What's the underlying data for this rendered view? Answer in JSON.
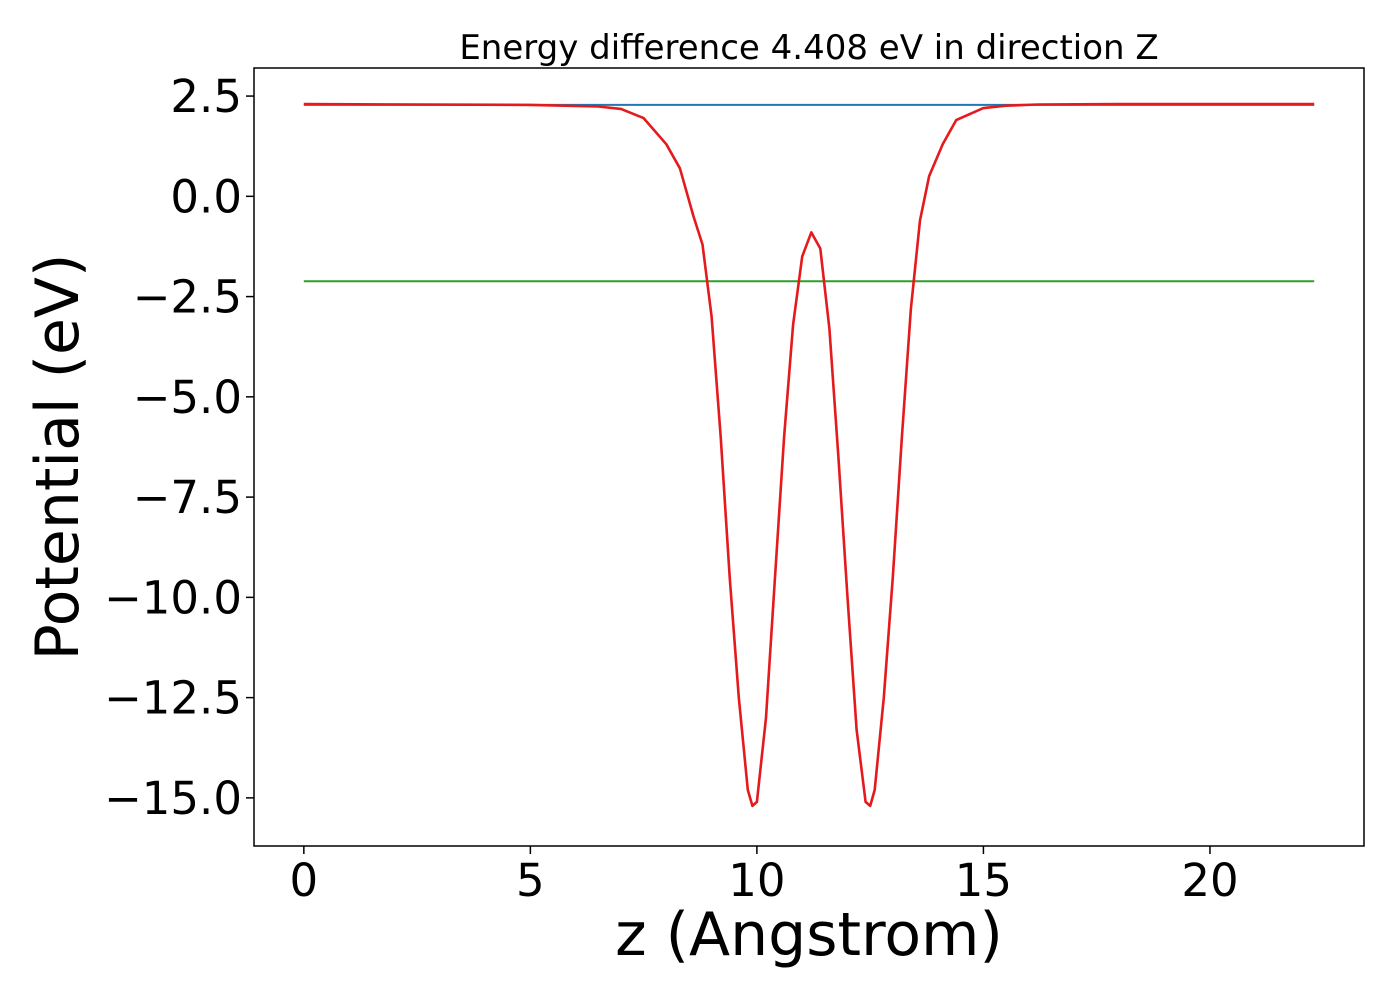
{
  "chart_data": {
    "type": "line",
    "title": "Energy difference 4.408 eV in direction Z",
    "xlabel": "z (Angstrom)",
    "ylabel": "Potential (eV)",
    "xlim": [
      -1.1,
      23.4
    ],
    "ylim": [
      -16.2,
      3.2
    ],
    "xticks": [
      0,
      5,
      10,
      15,
      20
    ],
    "xtick_labels": [
      "0",
      "5",
      "10",
      "15",
      "20"
    ],
    "yticks": [
      2.5,
      0.0,
      -2.5,
      -5.0,
      -7.5,
      -10.0,
      -12.5,
      -15.0
    ],
    "ytick_labels": [
      "2.5",
      "0.0",
      "−2.5",
      "−5.0",
      "−7.5",
      "−10.0",
      "−12.5",
      "−15.0"
    ],
    "grid": false,
    "series": [
      {
        "color": "#1f77b4",
        "x": [
          0,
          22.3
        ],
        "y": [
          2.28,
          2.28
        ]
      },
      {
        "color": "#2ca02c",
        "x": [
          0,
          22.3
        ],
        "y": [
          -2.12,
          -2.12
        ]
      },
      {
        "color": "#e41a1c",
        "x": [
          0,
          5.0,
          6.5,
          7.0,
          7.5,
          8.0,
          8.3,
          8.6,
          8.8,
          9.0,
          9.2,
          9.4,
          9.6,
          9.8,
          9.9,
          10.0,
          10.2,
          10.4,
          10.6,
          10.8,
          11.0,
          11.2,
          11.4,
          11.6,
          11.8,
          12.0,
          12.2,
          12.4,
          12.5,
          12.6,
          12.8,
          13.0,
          13.2,
          13.4,
          13.6,
          13.8,
          14.1,
          14.4,
          15.0,
          15.5,
          16.2,
          18.0,
          22.3
        ],
        "y": [
          2.3,
          2.28,
          2.24,
          2.18,
          1.95,
          1.3,
          0.7,
          -0.5,
          -1.2,
          -3.0,
          -6.0,
          -9.5,
          -12.5,
          -14.8,
          -15.2,
          -15.1,
          -13.0,
          -9.5,
          -6.0,
          -3.2,
          -1.5,
          -0.9,
          -1.3,
          -3.3,
          -6.5,
          -10.0,
          -13.3,
          -15.1,
          -15.2,
          -14.8,
          -12.5,
          -9.5,
          -6.0,
          -2.8,
          -0.6,
          0.5,
          1.3,
          1.9,
          2.2,
          2.26,
          2.29,
          2.3,
          2.3
        ]
      }
    ]
  }
}
